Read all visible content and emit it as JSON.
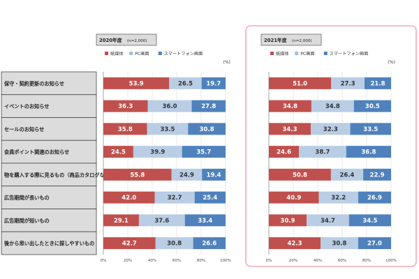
{
  "colors": {
    "paper": "#C0504D",
    "pc": "#B9CDE5",
    "smartphone": "#4F81BD",
    "label_bg": "#DCDCDC",
    "label_border": "#444444",
    "highlight_border": "#F4A9B5"
  },
  "chart_data": [
    {
      "type": "bar",
      "orientation": "horizontal",
      "stacked": true,
      "title": "2020年度",
      "sample": "(n=2,000)",
      "unit": "(%)",
      "legend_position": "top",
      "xlim": [
        0,
        100
      ],
      "xticks": [
        "0%",
        "20%",
        "40%",
        "60%",
        "80%",
        "100%"
      ],
      "categories": [
        "保守・契約更新のお知らせ",
        "イベントのお知らせ",
        "セールのお知らせ",
        "会員ポイント関連のお知らせ",
        "物を購入する際に見るもの（商品カタログなど）",
        "広告期間が長いもの",
        "広告期間が短いもの",
        "後から思い出したときに探しやすいもの"
      ],
      "series": [
        {
          "name": "紙媒体",
          "values": [
            53.9,
            36.3,
            35.8,
            24.5,
            55.8,
            42.0,
            29.1,
            42.7
          ]
        },
        {
          "name": "PC画面",
          "values": [
            26.5,
            36.0,
            33.5,
            39.9,
            24.9,
            32.7,
            37.6,
            30.8
          ]
        },
        {
          "name": "スマートフォン画面",
          "values": [
            19.7,
            27.8,
            30.8,
            35.7,
            19.4,
            25.4,
            33.4,
            26.6
          ]
        }
      ]
    },
    {
      "type": "bar",
      "orientation": "horizontal",
      "stacked": true,
      "title": "2021年度",
      "sample": "(n=2,000)",
      "unit": "(%)",
      "legend_position": "top",
      "xlim": [
        0,
        100
      ],
      "xticks": [
        "0%",
        "20%",
        "40%",
        "60%",
        "80%",
        "100%"
      ],
      "categories": [
        "保守・契約更新のお知らせ",
        "イベントのお知らせ",
        "セールのお知らせ",
        "会員ポイント関連のお知らせ",
        "物を購入する際に見るもの（商品カタログなど）",
        "広告期間が長いもの",
        "広告期間が短いもの",
        "後から思い出したときに探しやすいもの"
      ],
      "series": [
        {
          "name": "紙媒体",
          "values": [
            51.0,
            34.8,
            34.3,
            24.6,
            50.8,
            40.9,
            30.9,
            42.3
          ]
        },
        {
          "name": "PC画面",
          "values": [
            27.3,
            34.8,
            32.3,
            38.7,
            26.4,
            32.2,
            34.7,
            30.8
          ]
        },
        {
          "name": "スマートフォン画面",
          "values": [
            21.8,
            30.5,
            33.5,
            36.8,
            22.9,
            26.9,
            34.5,
            27.0
          ]
        }
      ]
    }
  ]
}
